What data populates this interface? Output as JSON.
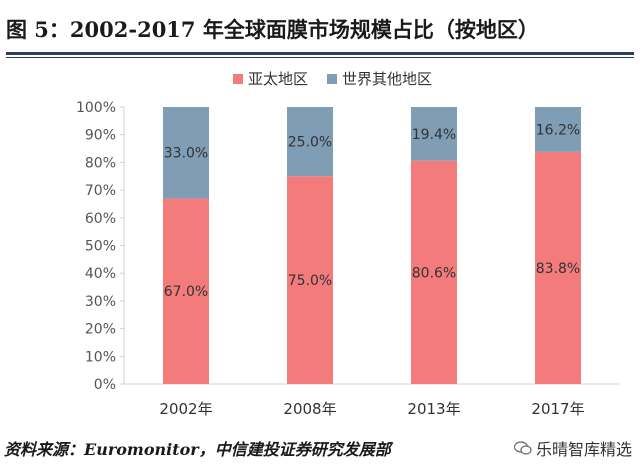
{
  "header": {
    "title": "图 5：2002-2017 年全球面膜市场规模占比（按地区）"
  },
  "colors": {
    "asia_pacific": "#f47b7b",
    "rest_of_world": "#7f9db5",
    "rule": "#2b3f5c"
  },
  "chart_data": {
    "type": "bar",
    "stacked": true,
    "categories": [
      "2002年",
      "2008年",
      "2013年",
      "2017年"
    ],
    "series": [
      {
        "name": "亚太地区",
        "values": [
          67.0,
          75.0,
          80.6,
          83.8
        ],
        "labels": [
          "67.0%",
          "75.0%",
          "80.6%",
          "83.8%"
        ]
      },
      {
        "name": "世界其他地区",
        "values": [
          33.0,
          25.0,
          19.4,
          16.2
        ],
        "labels": [
          "33.0%",
          "25.0%",
          "19.4%",
          "16.2%"
        ]
      }
    ],
    "ylim": [
      0,
      100
    ],
    "yticks": [
      "0%",
      "10%",
      "20%",
      "30%",
      "40%",
      "50%",
      "60%",
      "70%",
      "80%",
      "90%",
      "100%"
    ],
    "legend_position": "top-center",
    "grid": false
  },
  "footer": {
    "source": "资料来源：Euromonitor，中信建投证券研究发展部",
    "watermark": "乐晴智库精选"
  }
}
